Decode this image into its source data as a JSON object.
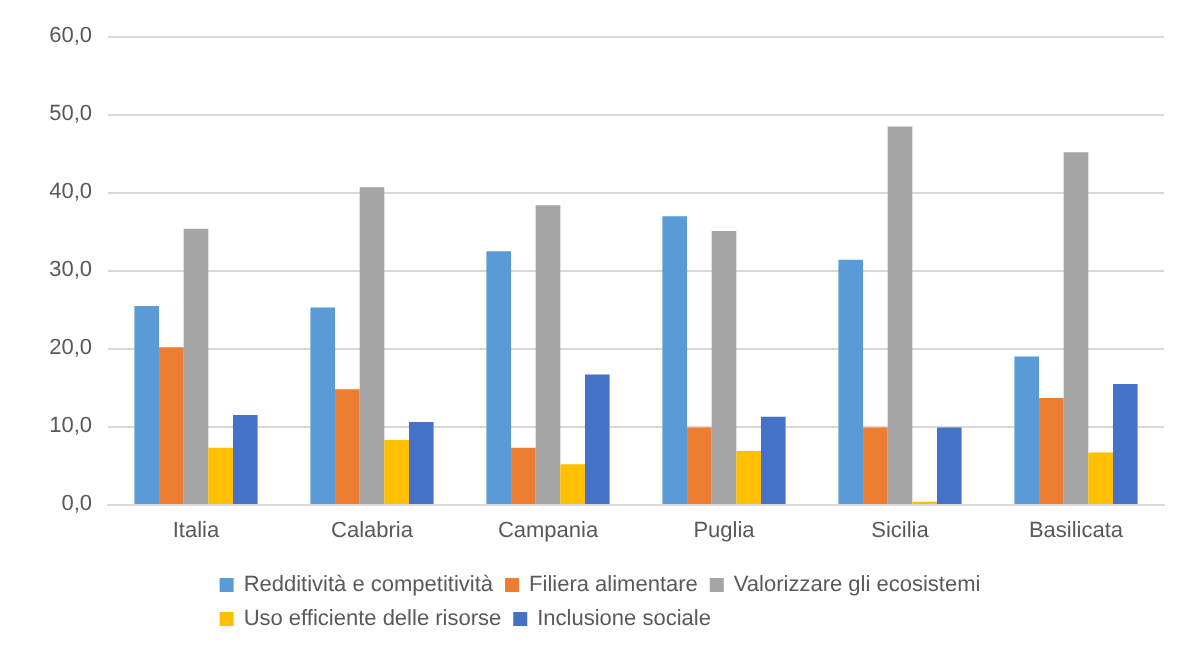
{
  "chart_data": {
    "type": "bar",
    "categories": [
      "Italia",
      "Calabria",
      "Campania",
      "Puglia",
      "Sicilia",
      "Basilicata"
    ],
    "series": [
      {
        "name": "Redditività e competitività",
        "color": "#5b9bd5",
        "values": [
          25.4,
          25.2,
          32.4,
          36.9,
          31.3,
          18.9
        ]
      },
      {
        "name": "Filiera alimentare",
        "color": "#ed7d31",
        "values": [
          20.1,
          14.7,
          7.2,
          9.8,
          9.8,
          13.6
        ]
      },
      {
        "name": "Valorizzare gli ecosistemi",
        "color": "#a5a5a5",
        "values": [
          35.3,
          40.6,
          38.3,
          35.0,
          48.4,
          45.1
        ]
      },
      {
        "name": "Uso efficiente delle risorse",
        "color": "#ffc000",
        "values": [
          7.2,
          8.2,
          5.1,
          6.8,
          0.3,
          6.6
        ]
      },
      {
        "name": "Inclusione sociale",
        "color": "#4472c4",
        "values": [
          11.4,
          10.5,
          16.6,
          11.2,
          9.8,
          15.4
        ]
      }
    ],
    "ylim": [
      0,
      60
    ],
    "yticks": [
      {
        "value": 0,
        "label": "0,0"
      },
      {
        "value": 10,
        "label": "10,0"
      },
      {
        "value": 20,
        "label": "20,0"
      },
      {
        "value": 30,
        "label": "30,0"
      },
      {
        "value": 40,
        "label": "40,0"
      },
      {
        "value": 50,
        "label": "50,0"
      },
      {
        "value": 60,
        "label": "60,0"
      }
    ],
    "grid": "y",
    "legend": "bottom"
  }
}
